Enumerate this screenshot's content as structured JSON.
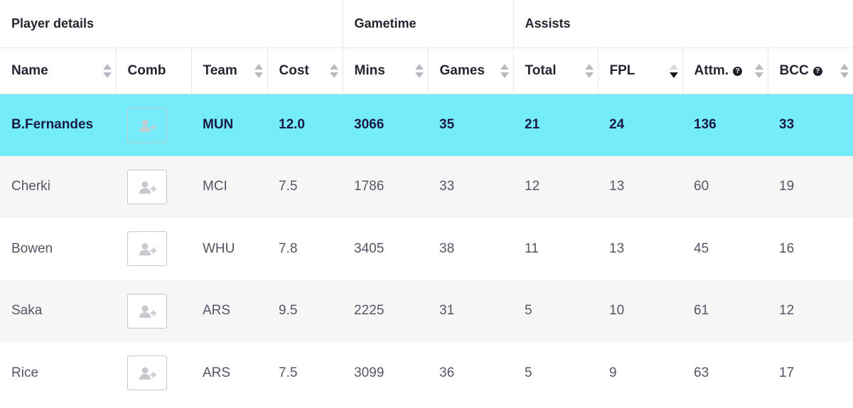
{
  "groups": {
    "player_details": "Player details",
    "gametime": "Gametime",
    "assists": "Assists"
  },
  "columns": {
    "name": "Name",
    "comb": "Comb",
    "team": "Team",
    "cost": "Cost",
    "mins": "Mins",
    "games": "Games",
    "total": "Total",
    "fpl": "FPL",
    "attm": "Attm.",
    "bcc": "BCC",
    "help_glyph": "?"
  },
  "sort": {
    "active_column": "fpl",
    "direction": "descending"
  },
  "highlight_color": "#74ecfa",
  "icons": {
    "add_to_comparison": "user-plus-icon",
    "help": "question-circle-icon"
  },
  "rows": [
    {
      "name": "B.Fernandes",
      "team": "MUN",
      "cost": "12.0",
      "mins": "3066",
      "games": "35",
      "total": "21",
      "fpl": "24",
      "attm": "136",
      "bcc": "33"
    },
    {
      "name": "Cherki",
      "team": "MCI",
      "cost": "7.5",
      "mins": "1786",
      "games": "33",
      "total": "12",
      "fpl": "13",
      "attm": "60",
      "bcc": "19"
    },
    {
      "name": "Bowen",
      "team": "WHU",
      "cost": "7.8",
      "mins": "3405",
      "games": "38",
      "total": "11",
      "fpl": "13",
      "attm": "45",
      "bcc": "16"
    },
    {
      "name": "Saka",
      "team": "ARS",
      "cost": "9.5",
      "mins": "2225",
      "games": "31",
      "total": "5",
      "fpl": "10",
      "attm": "61",
      "bcc": "12"
    },
    {
      "name": "Rice",
      "team": "ARS",
      "cost": "7.5",
      "mins": "3099",
      "games": "36",
      "total": "5",
      "fpl": "9",
      "attm": "63",
      "bcc": "17"
    }
  ]
}
